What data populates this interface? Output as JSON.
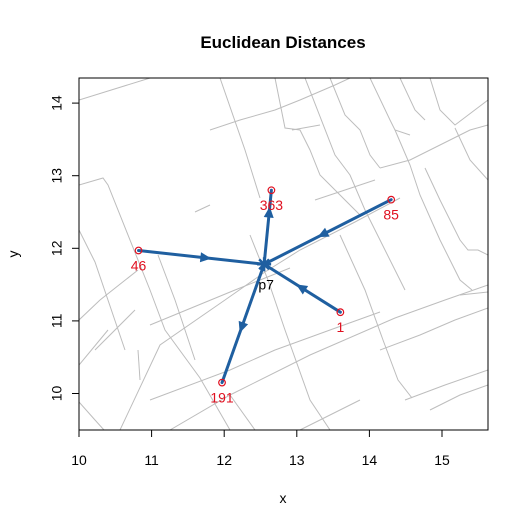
{
  "chart_data": {
    "type": "scatter",
    "title": "Euclidean Distances",
    "xlabel": "x",
    "ylabel": "y",
    "xlim": [
      10,
      15.6
    ],
    "ylim": [
      9.5,
      14.4
    ],
    "x_ticks": [
      10,
      11,
      12,
      13,
      14,
      15
    ],
    "y_ticks": [
      10,
      11,
      12,
      13,
      14
    ],
    "center": {
      "label": "p7",
      "x": 12.55,
      "y": 11.78
    },
    "points": [
      {
        "label": "363",
        "x": 12.65,
        "y": 12.8
      },
      {
        "label": "85",
        "x": 14.3,
        "y": 12.67
      },
      {
        "label": "46",
        "x": 10.82,
        "y": 11.97
      },
      {
        "label": "1",
        "x": 13.6,
        "y": 11.12
      },
      {
        "label": "191",
        "x": 11.97,
        "y": 10.15
      }
    ],
    "colors": {
      "arrow": "#1f5fa0",
      "point": "#e01020",
      "street": "#bdbdbd",
      "axis": "#000000"
    }
  }
}
